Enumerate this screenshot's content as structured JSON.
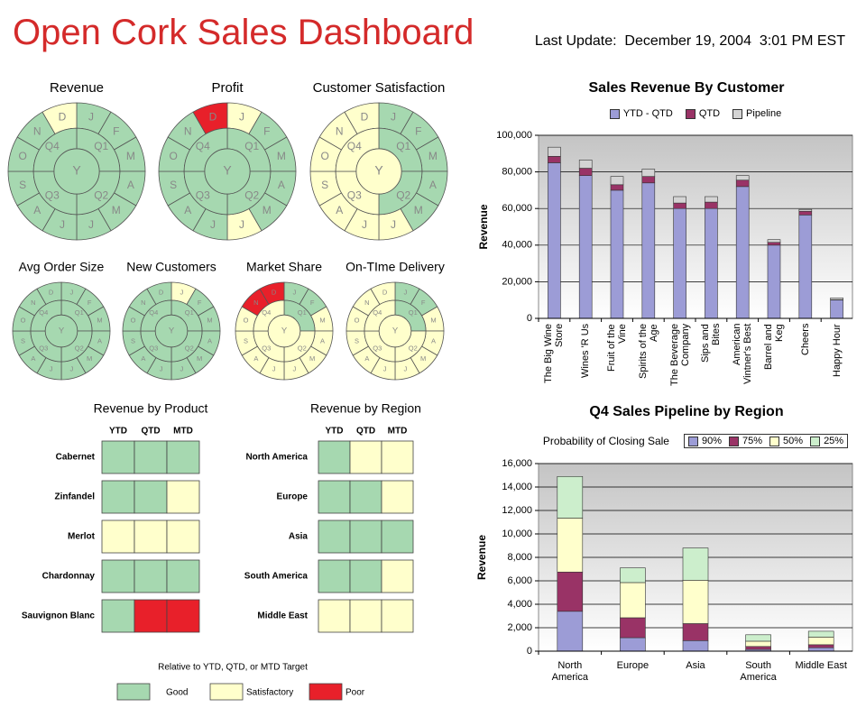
{
  "header": {
    "title": "Open Cork Sales Dashboard",
    "last_update": "Last Update:  December 19, 2004  3:01 PM EST"
  },
  "wheel_labels": {
    "year": "Y",
    "quarters": [
      "Q1",
      "Q2",
      "Q3",
      "Q4"
    ],
    "months": [
      "J",
      "F",
      "M",
      "A",
      "M",
      "J",
      "J",
      "A",
      "S",
      "O",
      "N",
      "D"
    ]
  },
  "wheels": [
    {
      "title": "Revenue",
      "year": "#a6d8b0",
      "quarters": [
        "#a6d8b0",
        "#a6d8b0",
        "#a6d8b0",
        "#a6d8b0"
      ],
      "months": [
        "#a6d8b0",
        "#a6d8b0",
        "#a6d8b0",
        "#a6d8b0",
        "#a6d8b0",
        "#a6d8b0",
        "#a6d8b0",
        "#a6d8b0",
        "#a6d8b0",
        "#a6d8b0",
        "#a6d8b0",
        "#ffffcc"
      ]
    },
    {
      "title": "Profit",
      "year": "#a6d8b0",
      "quarters": [
        "#a6d8b0",
        "#a6d8b0",
        "#a6d8b0",
        "#a6d8b0"
      ],
      "months": [
        "#ffffcc",
        "#a6d8b0",
        "#a6d8b0",
        "#a6d8b0",
        "#a6d8b0",
        "#ffffcc",
        "#a6d8b0",
        "#a6d8b0",
        "#a6d8b0",
        "#a6d8b0",
        "#a6d8b0",
        "#e8202a"
      ]
    },
    {
      "title": "Customer Satisfaction",
      "year": "#ffffcc",
      "quarters": [
        "#a6d8b0",
        "#a6d8b0",
        "#ffffcc",
        "#ffffcc"
      ],
      "months": [
        "#a6d8b0",
        "#a6d8b0",
        "#a6d8b0",
        "#a6d8b0",
        "#a6d8b0",
        "#ffffcc",
        "#ffffcc",
        "#ffffcc",
        "#ffffcc",
        "#ffffcc",
        "#ffffcc",
        "#ffffcc"
      ]
    },
    {
      "title": "Avg Order Size",
      "year": "#a6d8b0",
      "quarters": [
        "#a6d8b0",
        "#a6d8b0",
        "#a6d8b0",
        "#a6d8b0"
      ],
      "months": [
        "#a6d8b0",
        "#a6d8b0",
        "#a6d8b0",
        "#a6d8b0",
        "#a6d8b0",
        "#a6d8b0",
        "#a6d8b0",
        "#a6d8b0",
        "#a6d8b0",
        "#a6d8b0",
        "#a6d8b0",
        "#a6d8b0"
      ]
    },
    {
      "title": "New Customers",
      "year": "#a6d8b0",
      "quarters": [
        "#a6d8b0",
        "#a6d8b0",
        "#a6d8b0",
        "#a6d8b0"
      ],
      "months": [
        "#ffffcc",
        "#a6d8b0",
        "#a6d8b0",
        "#a6d8b0",
        "#a6d8b0",
        "#a6d8b0",
        "#a6d8b0",
        "#a6d8b0",
        "#a6d8b0",
        "#a6d8b0",
        "#a6d8b0",
        "#a6d8b0"
      ]
    },
    {
      "title": "Market Share",
      "year": "#ffffcc",
      "quarters": [
        "#a6d8b0",
        "#ffffcc",
        "#ffffcc",
        "#ffffcc"
      ],
      "months": [
        "#a6d8b0",
        "#a6d8b0",
        "#ffffcc",
        "#ffffcc",
        "#ffffcc",
        "#ffffcc",
        "#ffffcc",
        "#ffffcc",
        "#ffffcc",
        "#ffffcc",
        "#e8202a",
        "#e8202a"
      ]
    },
    {
      "title": "On-TIme Delivery",
      "year": "#ffffcc",
      "quarters": [
        "#a6d8b0",
        "#ffffcc",
        "#ffffcc",
        "#ffffcc"
      ],
      "months": [
        "#a6d8b0",
        "#a6d8b0",
        "#ffffcc",
        "#ffffcc",
        "#ffffcc",
        "#ffffcc",
        "#ffffcc",
        "#ffffcc",
        "#ffffcc",
        "#ffffcc",
        "#ffffcc",
        "#ffffcc"
      ]
    }
  ],
  "product_table": {
    "title": "Revenue by Product",
    "columns": [
      "YTD",
      "QTD",
      "MTD"
    ],
    "rows": [
      {
        "label": "Cabernet",
        "cells": [
          "#a6d8b0",
          "#a6d8b0",
          "#a6d8b0"
        ]
      },
      {
        "label": "Zinfandel",
        "cells": [
          "#a6d8b0",
          "#a6d8b0",
          "#ffffcc"
        ]
      },
      {
        "label": "Merlot",
        "cells": [
          "#ffffcc",
          "#ffffcc",
          "#ffffcc"
        ]
      },
      {
        "label": "Chardonnay",
        "cells": [
          "#a6d8b0",
          "#a6d8b0",
          "#a6d8b0"
        ]
      },
      {
        "label": "Sauvignon Blanc",
        "cells": [
          "#a6d8b0",
          "#e8202a",
          "#e8202a"
        ]
      }
    ]
  },
  "region_table": {
    "title": "Revenue by Region",
    "columns": [
      "YTD",
      "QTD",
      "MTD"
    ],
    "rows": [
      {
        "label": "North America",
        "cells": [
          "#a6d8b0",
          "#ffffcc",
          "#ffffcc"
        ]
      },
      {
        "label": "Europe",
        "cells": [
          "#a6d8b0",
          "#a6d8b0",
          "#ffffcc"
        ]
      },
      {
        "label": "Asia",
        "cells": [
          "#a6d8b0",
          "#a6d8b0",
          "#a6d8b0"
        ]
      },
      {
        "label": "South America",
        "cells": [
          "#a6d8b0",
          "#a6d8b0",
          "#ffffcc"
        ]
      },
      {
        "label": "Middle East",
        "cells": [
          "#ffffcc",
          "#ffffcc",
          "#ffffcc"
        ]
      }
    ]
  },
  "status_legend": {
    "title": "Relative to YTD, QTD, or MTD Target",
    "items": [
      {
        "label": "Good",
        "color": "#a6d8b0"
      },
      {
        "label": "Satisfactory",
        "color": "#ffffcc"
      },
      {
        "label": "Poor",
        "color": "#e8202a"
      }
    ]
  },
  "chart_data": [
    {
      "type": "bar",
      "stacked": true,
      "title": "Sales Revenue By Customer",
      "y_label": "Revenue",
      "grid": true,
      "categories": [
        "The Big Wine Store",
        "Wines 'R Us",
        "Fruit of the Vine",
        "Spirits of the Age",
        "The Beverage Company",
        "Sips and Bites",
        "American Vintner's Best",
        "Barrel and Keg",
        "Cheers",
        "Happy Hour"
      ],
      "series": [
        {
          "name": "YTD - QTD",
          "color": "#9c9cd6",
          "values": [
            85000,
            78000,
            70000,
            74000,
            60000,
            60000,
            72000,
            40000,
            56500,
            10000
          ]
        },
        {
          "name": "QTD",
          "color": "#993366",
          "values": [
            3500,
            4000,
            3000,
            3500,
            3000,
            3500,
            3500,
            1500,
            2000,
            200
          ]
        },
        {
          "name": "Pipeline",
          "color": "#d4d4d4",
          "values": [
            5000,
            4500,
            4500,
            4000,
            3500,
            3000,
            2500,
            1500,
            1000,
            1000
          ]
        }
      ],
      "ylim": [
        0,
        100000
      ],
      "yticks": [
        0,
        {
          "value": 20000,
          "label": "20,000"
        },
        {
          "value": 40000,
          "label": "40,000"
        },
        {
          "value": 60000,
          "label": "60,000"
        },
        {
          "value": 80000,
          "label": "80,000"
        },
        {
          "value": 100000,
          "label": "100,000"
        }
      ]
    },
    {
      "type": "bar",
      "stacked": true,
      "title": "Q4 Sales Pipeline by Region",
      "y_label": "Revenue",
      "legend_title": "Probability of Closing Sale",
      "grid": true,
      "categories": [
        "North America",
        "Europe",
        "Asia",
        "South America",
        "Middle East"
      ],
      "series": [
        {
          "name": "90%",
          "color": "#9c9cd6",
          "values": [
            3400,
            1150,
            900,
            150,
            300
          ]
        },
        {
          "name": "75%",
          "color": "#993366",
          "values": [
            3350,
            1700,
            1450,
            250,
            250
          ]
        },
        {
          "name": "50%",
          "color": "#ffffcc",
          "values": [
            4600,
            3000,
            3700,
            450,
            650
          ]
        },
        {
          "name": "25%",
          "color": "#cceecc",
          "values": [
            3550,
            1250,
            2750,
            550,
            500
          ]
        }
      ],
      "ylim": [
        0,
        16000
      ],
      "yticks": [
        0,
        {
          "value": 2000,
          "label": "2,000"
        },
        {
          "value": 4000,
          "label": "4,000"
        },
        {
          "value": 6000,
          "label": "6,000"
        },
        {
          "value": 8000,
          "label": "8,000"
        },
        {
          "value": 10000,
          "label": "10,000"
        },
        {
          "value": 12000,
          "label": "12,000"
        },
        {
          "value": 14000,
          "label": "14,000"
        },
        {
          "value": 16000,
          "label": "16,000"
        }
      ]
    }
  ]
}
